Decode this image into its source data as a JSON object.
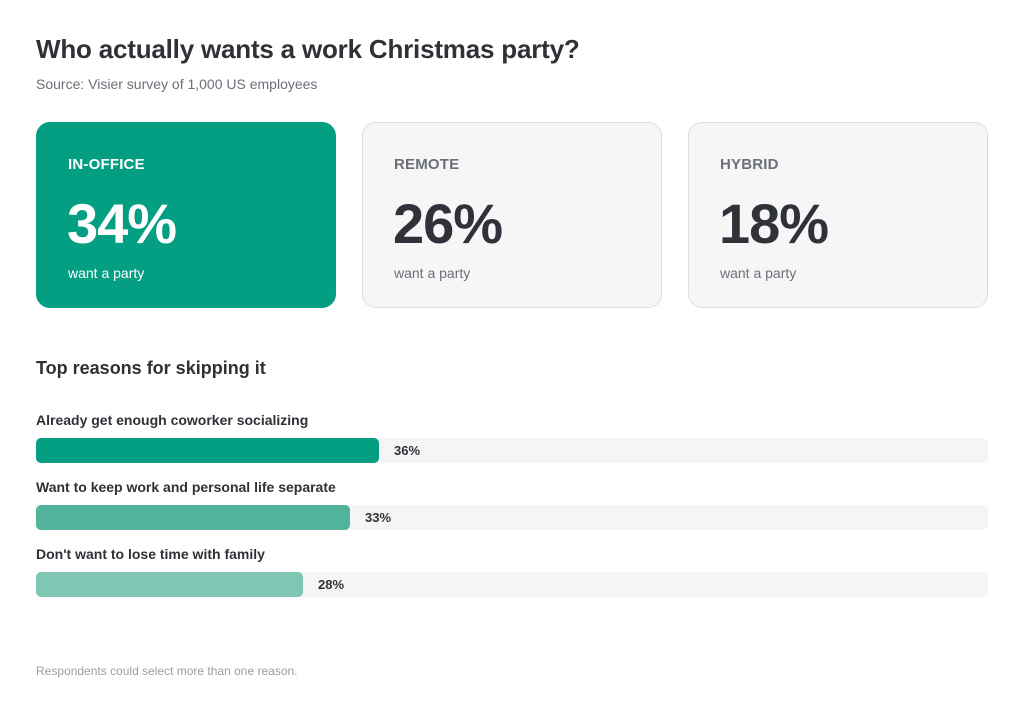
{
  "title": "Who actually wants a work Christmas party?",
  "source": "Source: Visier survey of 1,000 US employees",
  "cards": [
    {
      "label": "IN-OFFICE",
      "value": "34%",
      "caption": "want a party",
      "highlight": true
    },
    {
      "label": "REMOTE",
      "value": "26%",
      "caption": "want a party",
      "highlight": false
    },
    {
      "label": "HYBRID",
      "value": "18%",
      "caption": "want a party",
      "highlight": false
    }
  ],
  "reasons_title": "Top reasons for skipping it",
  "footnote": "Respondents could select more than one reason.",
  "colors": {
    "accent": "#049f83",
    "bar_1": "#049f83",
    "bar_2": "#52b49d",
    "bar_3": "#80c6b5",
    "track": "#f5f5f6",
    "card_bg": "#f6f6f7"
  },
  "chart_data": [
    {
      "type": "bar",
      "categories": [
        "IN-OFFICE",
        "REMOTE",
        "HYBRID"
      ],
      "values": [
        34,
        26,
        18
      ],
      "value_labels": [
        "34%",
        "26%",
        "18%"
      ],
      "caption": "want a party",
      "unit": "%"
    },
    {
      "type": "bar",
      "orientation": "horizontal",
      "title": "Top reasons for skipping it",
      "categories": [
        "Already get enough coworker socializing",
        "Want to keep work and personal life separate",
        "Don't want to lose time with family"
      ],
      "values": [
        36,
        33,
        28
      ],
      "value_labels": [
        "36%",
        "33%",
        "28%"
      ],
      "xlim": [
        0,
        100
      ],
      "unit": "%",
      "grid": false
    }
  ]
}
